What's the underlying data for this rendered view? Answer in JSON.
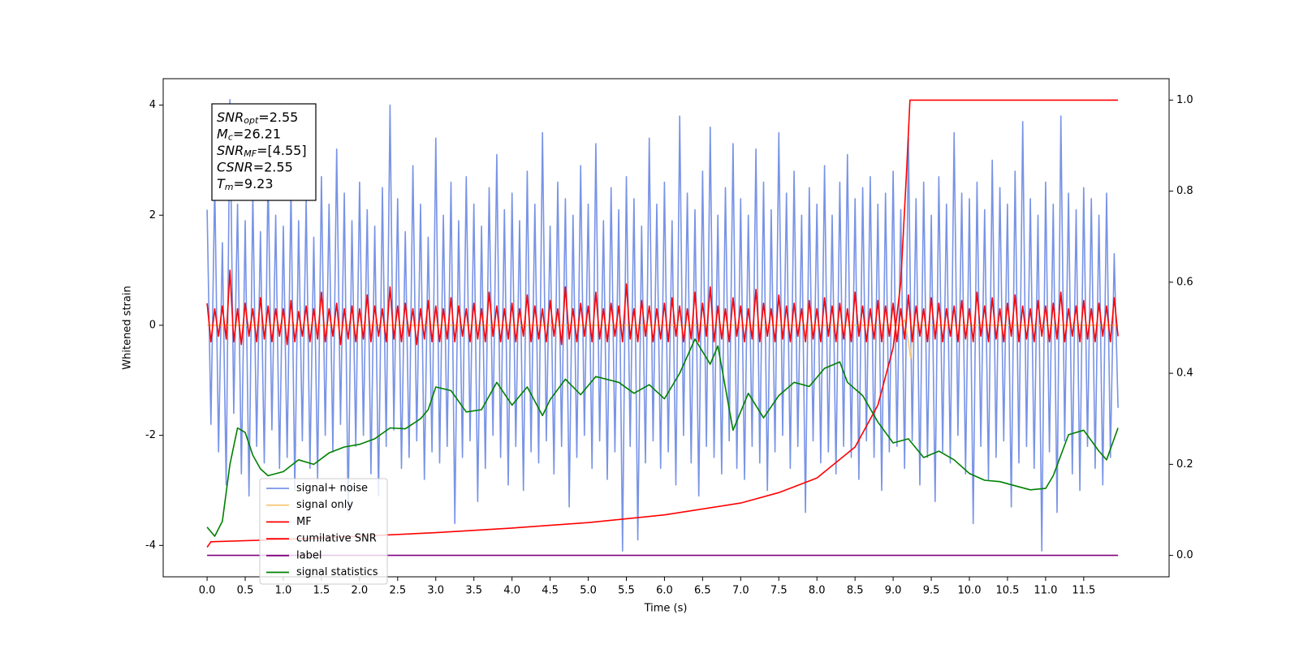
{
  "chart_data": {
    "type": "line",
    "xlabel": "Time (s)",
    "ylabel": "Whitened strain",
    "xlim": [
      -0.576,
      12.62
    ],
    "ylim": [
      -4.57,
      4.48
    ],
    "y2lim": [
      -0.047,
      1.047
    ],
    "xticks": [
      {
        "value": 0,
        "label": "0.0"
      },
      0.5,
      {
        "value": 1,
        "label": "1.0"
      },
      1.5,
      {
        "value": 2,
        "label": "2.0"
      },
      2.5,
      {
        "value": 3,
        "label": "3.0"
      },
      3.5,
      {
        "value": 4,
        "label": "4.0"
      },
      4.5,
      {
        "value": 5,
        "label": "5.0"
      },
      5.5,
      {
        "value": 6,
        "label": "6.0"
      },
      6.5,
      {
        "value": 7,
        "label": "7.0"
      },
      7.5,
      {
        "value": 8,
        "label": "8.0"
      },
      8.5,
      {
        "value": 9,
        "label": "9.0"
      },
      9.5,
      {
        "value": 10,
        "label": "10.0"
      },
      10.5,
      {
        "value": 11,
        "label": "11.0"
      },
      11.5
    ],
    "yticks": [
      -4,
      -2,
      0,
      2,
      4
    ],
    "y2ticks": [
      {
        "value": 0,
        "label": "0.0"
      },
      0.2,
      0.4,
      0.6,
      0.8,
      {
        "value": 1,
        "label": "1.0"
      }
    ],
    "x": [
      0,
      0.05,
      0.1,
      0.15,
      0.2,
      0.25,
      0.3,
      0.35,
      0.4,
      0.45,
      0.5,
      0.55,
      0.6,
      0.65,
      0.7,
      0.75,
      0.8,
      0.85,
      0.9,
      0.95,
      1,
      1.05,
      1.1,
      1.15,
      1.2,
      1.25,
      1.3,
      1.35,
      1.4,
      1.45,
      1.5,
      1.55,
      1.6,
      1.65,
      1.7,
      1.75,
      1.8,
      1.85,
      1.9,
      1.95,
      2,
      2.05,
      2.1,
      2.15,
      2.2,
      2.25,
      2.3,
      2.35,
      2.4,
      2.45,
      2.5,
      2.55,
      2.6,
      2.65,
      2.7,
      2.75,
      2.8,
      2.85,
      2.9,
      2.95,
      3,
      3.05,
      3.1,
      3.15,
      3.2,
      3.25,
      3.3,
      3.35,
      3.4,
      3.45,
      3.5,
      3.55,
      3.6,
      3.65,
      3.7,
      3.75,
      3.8,
      3.85,
      3.9,
      3.95,
      4,
      4.05,
      4.1,
      4.15,
      4.2,
      4.25,
      4.3,
      4.35,
      4.4,
      4.45,
      4.5,
      4.55,
      4.6,
      4.65,
      4.7,
      4.75,
      4.8,
      4.85,
      4.9,
      4.95,
      5,
      5.05,
      5.1,
      5.15,
      5.2,
      5.25,
      5.3,
      5.35,
      5.4,
      5.45,
      5.5,
      5.55,
      5.6,
      5.65,
      5.7,
      5.75,
      5.8,
      5.85,
      5.9,
      5.95,
      6,
      6.05,
      6.1,
      6.15,
      6.2,
      6.25,
      6.3,
      6.35,
      6.4,
      6.45,
      6.5,
      6.55,
      6.6,
      6.65,
      6.7,
      6.75,
      6.8,
      6.85,
      6.9,
      6.95,
      7,
      7.05,
      7.1,
      7.15,
      7.2,
      7.25,
      7.3,
      7.35,
      7.4,
      7.45,
      7.5,
      7.55,
      7.6,
      7.65,
      7.7,
      7.75,
      7.8,
      7.85,
      7.9,
      7.95,
      8,
      8.05,
      8.1,
      8.15,
      8.2,
      8.25,
      8.3,
      8.35,
      8.4,
      8.45,
      8.5,
      8.55,
      8.6,
      8.65,
      8.7,
      8.75,
      8.8,
      8.85,
      8.9,
      8.95,
      9,
      9.05,
      9.1,
      9.15,
      9.2,
      9.25,
      9.3,
      9.35,
      9.4,
      9.45,
      9.5,
      9.55,
      9.6,
      9.65,
      9.7,
      9.75,
      9.8,
      9.85,
      9.9,
      9.95,
      10,
      10.05,
      10.1,
      10.15,
      10.2,
      10.25,
      10.3,
      10.35,
      10.4,
      10.45,
      10.5,
      10.55,
      10.6,
      10.65,
      10.7,
      10.75,
      10.8,
      10.85,
      10.9,
      10.95,
      11,
      11.05,
      11.1,
      11.15,
      11.2,
      11.25,
      11.3,
      11.35,
      11.4,
      11.45,
      11.5,
      11.55,
      11.6,
      11.65,
      11.7,
      11.75,
      11.8,
      11.85,
      11.9,
      11.95
    ],
    "series": [
      {
        "name": "signal+ noise",
        "color": "#7893e6",
        "values": [
          2.1,
          -1.8,
          2.6,
          -2.3,
          1.5,
          -2.9,
          4.1,
          -1.6,
          2.2,
          -2.7,
          1.9,
          -3.1,
          2.4,
          -2.2,
          1.7,
          -2.5,
          2.8,
          -1.9,
          2.0,
          -2.6,
          1.8,
          -2.4,
          2.5,
          -3.0,
          1.9,
          -2.1,
          2.3,
          -2.6,
          1.6,
          -2.8,
          2.7,
          -2.0,
          2.2,
          -2.3,
          3.2,
          -1.8,
          2.4,
          -3.4,
          1.9,
          -2.2,
          2.6,
          -2.0,
          2.1,
          -2.7,
          1.8,
          -3.1,
          2.5,
          -2.2,
          4.0,
          -1.9,
          2.3,
          -2.6,
          1.7,
          -2.4,
          2.9,
          -2.1,
          2.2,
          -2.8,
          1.6,
          -2.3,
          3.4,
          -2.5,
          2.0,
          -2.2,
          2.6,
          -3.6,
          1.9,
          -2.4,
          2.7,
          -2.1,
          2.2,
          -3.2,
          1.8,
          -2.6,
          2.5,
          -2.0,
          3.1,
          -2.4,
          2.1,
          -2.9,
          2.4,
          -2.2,
          1.9,
          -3.0,
          2.8,
          -2.3,
          2.2,
          -2.5,
          3.5,
          -2.1,
          1.8,
          -2.7,
          2.6,
          -2.2,
          2.3,
          -3.3,
          2.0,
          -2.4,
          2.9,
          -2.0,
          2.2,
          -2.6,
          3.3,
          -2.1,
          1.9,
          -2.8,
          2.5,
          -2.3,
          2.1,
          -4.1,
          2.7,
          -2.2,
          2.3,
          -3.9,
          1.8,
          -2.5,
          3.4,
          -2.1,
          2.2,
          -2.6,
          2.6,
          -2.3,
          1.9,
          -2.9,
          3.8,
          -2.0,
          2.4,
          -2.5,
          2.1,
          -3.1,
          2.8,
          -2.2,
          3.6,
          -2.4,
          2.0,
          -2.7,
          2.5,
          -2.1,
          3.3,
          -2.6,
          2.3,
          -2.8,
          2.0,
          -2.2,
          3.2,
          -2.5,
          2.6,
          -3.0,
          2.1,
          -2.3,
          3.5,
          -2.0,
          2.4,
          -2.6,
          2.8,
          -2.2,
          2.0,
          -3.4,
          2.5,
          -2.1,
          2.2,
          -2.5,
          2.9,
          -2.3,
          2.0,
          -2.7,
          2.6,
          -2.2,
          3.1,
          -2.4,
          2.3,
          -2.8,
          2.5,
          -2.1,
          2.7,
          -2.4,
          2.2,
          -3.0,
          2.4,
          -2.3,
          2.8,
          -2.2,
          2.1,
          -2.6,
          3.4,
          -2.1,
          2.3,
          -2.9,
          2.6,
          -2.4,
          2.0,
          -3.2,
          2.7,
          -2.3,
          2.2,
          -2.5,
          3.5,
          -2.0,
          2.4,
          -2.7,
          2.3,
          -3.6,
          2.6,
          -2.2,
          2.1,
          -2.8,
          3.0,
          -2.4,
          2.5,
          -2.1,
          2.2,
          -3.3,
          2.8,
          -2.5,
          3.7,
          -2.2,
          2.3,
          -2.6,
          2.0,
          -4.1,
          2.6,
          -2.3,
          2.2,
          -3.4,
          3.8,
          -2.1,
          2.4,
          -2.7,
          2.1,
          -3.0,
          2.5,
          -2.2,
          2.3,
          -2.6,
          2.0,
          -2.9,
          2.4,
          -2.4,
          1.3,
          -1.5
        ]
      },
      {
        "name": "signal only",
        "color": "#f5c97a",
        "x": [
          0,
          9.1,
          9.15,
          9.2,
          9.23,
          9.26,
          11.95
        ],
        "values": [
          0,
          0,
          0.1,
          -0.3,
          -0.6,
          0,
          0
        ]
      },
      {
        "name": "MF",
        "color": "#ff0000",
        "values": [
          0.4,
          -0.3,
          0.3,
          -0.2,
          0.35,
          -0.25,
          1.0,
          -0.3,
          0.3,
          -0.35,
          0.4,
          -0.2,
          0.3,
          -0.3,
          0.5,
          -0.25,
          0.35,
          -0.3,
          0.3,
          -0.2,
          0.3,
          -0.35,
          0.45,
          -0.3,
          0.25,
          -0.2,
          0.35,
          -0.3,
          0.3,
          -0.25,
          0.6,
          -0.3,
          0.3,
          -0.2,
          0.4,
          -0.35,
          0.3,
          -0.25,
          0.35,
          -0.3,
          0.3,
          -0.25,
          0.55,
          -0.3,
          0.35,
          -0.2,
          0.3,
          -0.3,
          0.7,
          -0.25,
          0.35,
          -0.3,
          0.4,
          -0.2,
          0.3,
          -0.35,
          0.3,
          -0.25,
          0.45,
          -0.3,
          0.35,
          -0.3,
          0.3,
          -0.25,
          0.5,
          -0.3,
          0.35,
          -0.2,
          0.3,
          -0.3,
          0.4,
          -0.25,
          0.3,
          -0.3,
          0.6,
          -0.2,
          0.35,
          -0.3,
          0.3,
          -0.25,
          0.4,
          -0.3,
          0.3,
          -0.2,
          0.55,
          -0.3,
          0.35,
          -0.25,
          0.3,
          -0.3,
          0.45,
          -0.2,
          0.3,
          -0.35,
          0.7,
          -0.25,
          0.3,
          -0.3,
          0.4,
          -0.2,
          0.35,
          -0.3,
          0.6,
          -0.25,
          0.3,
          -0.3,
          0.4,
          -0.2,
          0.35,
          -0.3,
          0.75,
          -0.25,
          0.3,
          -0.3,
          0.45,
          -0.2,
          0.35,
          -0.3,
          0.3,
          -0.25,
          0.4,
          -0.3,
          0.5,
          -0.2,
          0.35,
          -0.3,
          0.3,
          -0.25,
          0.6,
          -0.3,
          0.4,
          -0.2,
          0.7,
          -0.3,
          0.35,
          -0.25,
          0.3,
          -0.3,
          0.5,
          -0.2,
          0.35,
          -0.3,
          0.3,
          -0.25,
          0.65,
          -0.3,
          0.4,
          -0.2,
          0.3,
          -0.3,
          0.55,
          -0.25,
          0.35,
          -0.3,
          0.4,
          -0.2,
          0.3,
          -0.3,
          0.45,
          -0.25,
          0.3,
          -0.3,
          0.5,
          -0.2,
          0.35,
          -0.3,
          0.4,
          -0.25,
          0.3,
          -0.3,
          0.6,
          -0.2,
          0.35,
          -0.3,
          0.3,
          -0.25,
          0.45,
          -0.3,
          0.35,
          -0.2,
          0.4,
          -0.3,
          0.3,
          -0.25,
          0.55,
          -0.3,
          0.35,
          -0.2,
          0.3,
          -0.3,
          0.5,
          -0.25,
          0.4,
          -0.3,
          0.3,
          -0.2,
          0.35,
          -0.3,
          0.45,
          -0.25,
          0.3,
          -0.3,
          0.6,
          -0.2,
          0.35,
          -0.3,
          0.5,
          -0.25,
          0.3,
          -0.3,
          0.4,
          -0.2,
          0.55,
          -0.3,
          0.35,
          -0.25,
          0.3,
          -0.3,
          0.45,
          -0.2,
          0.35,
          -0.3,
          0.4,
          -0.25,
          0.6,
          -0.3,
          0.3,
          -0.2,
          0.35,
          -0.3,
          0.45,
          -0.25,
          0.3,
          -0.3,
          0.4,
          -0.2,
          0.35,
          -0.3,
          0.5,
          -0.2
        ]
      },
      {
        "name": "cumilative SNR",
        "color": "#ff0000",
        "axis": "y2",
        "x": [
          0,
          0.05,
          1,
          2,
          3,
          4,
          5,
          6,
          7,
          7.5,
          8,
          8.5,
          8.8,
          9.0,
          9.1,
          9.18,
          9.22,
          11.95
        ],
        "values": [
          0.018,
          0.03,
          0.035,
          0.042,
          0.05,
          0.06,
          0.072,
          0.089,
          0.115,
          0.138,
          0.17,
          0.238,
          0.33,
          0.456,
          0.6,
          0.856,
          1.0,
          1.0
        ]
      },
      {
        "name": "label",
        "color": "#800080",
        "axis": "y2",
        "x": [
          0,
          11.95
        ],
        "values": [
          0,
          0
        ]
      },
      {
        "name": "signal statistics",
        "color": "#008000",
        "axis": "y2",
        "x": [
          0,
          0.1,
          0.2,
          0.3,
          0.4,
          0.5,
          0.6,
          0.7,
          0.8,
          1.0,
          1.2,
          1.4,
          1.6,
          1.8,
          2.0,
          2.2,
          2.4,
          2.6,
          2.8,
          2.9,
          3.0,
          3.2,
          3.4,
          3.6,
          3.8,
          4.0,
          4.2,
          4.4,
          4.5,
          4.7,
          4.9,
          5.1,
          5.4,
          5.6,
          5.8,
          6.0,
          6.2,
          6.4,
          6.6,
          6.7,
          6.9,
          7.1,
          7.3,
          7.5,
          7.7,
          7.9,
          8.1,
          8.3,
          8.4,
          8.6,
          8.8,
          9.0,
          9.2,
          9.4,
          9.6,
          9.8,
          10.0,
          10.2,
          10.4,
          10.6,
          10.8,
          11.0,
          11.1,
          11.3,
          11.5,
          11.7,
          11.8,
          11.95
        ],
        "values": [
          0.062,
          0.042,
          0.075,
          0.2,
          0.28,
          0.27,
          0.22,
          0.19,
          0.175,
          0.184,
          0.21,
          0.2,
          0.225,
          0.238,
          0.244,
          0.256,
          0.28,
          0.278,
          0.3,
          0.32,
          0.37,
          0.362,
          0.315,
          0.32,
          0.38,
          0.33,
          0.37,
          0.307,
          0.342,
          0.387,
          0.353,
          0.393,
          0.38,
          0.356,
          0.375,
          0.344,
          0.4,
          0.475,
          0.42,
          0.46,
          0.275,
          0.356,
          0.302,
          0.351,
          0.38,
          0.371,
          0.411,
          0.425,
          0.38,
          0.351,
          0.293,
          0.247,
          0.256,
          0.215,
          0.229,
          0.21,
          0.18,
          0.165,
          0.162,
          0.153,
          0.144,
          0.147,
          0.175,
          0.265,
          0.275,
          0.229,
          0.21,
          0.28
        ]
      }
    ],
    "annotation": [
      {
        "symbol": "SNR",
        "sub": "opt",
        "text": "=2.55"
      },
      {
        "symbol": "M",
        "sub": "c",
        "text": "=26.21"
      },
      {
        "symbol": "SNR",
        "sub": "MF",
        "text": "=[4.55]"
      },
      {
        "symbol": "CSNR",
        "text": "=2.55"
      },
      {
        "symbol": "T",
        "sub": "m",
        "text": "=9.23"
      }
    ]
  }
}
